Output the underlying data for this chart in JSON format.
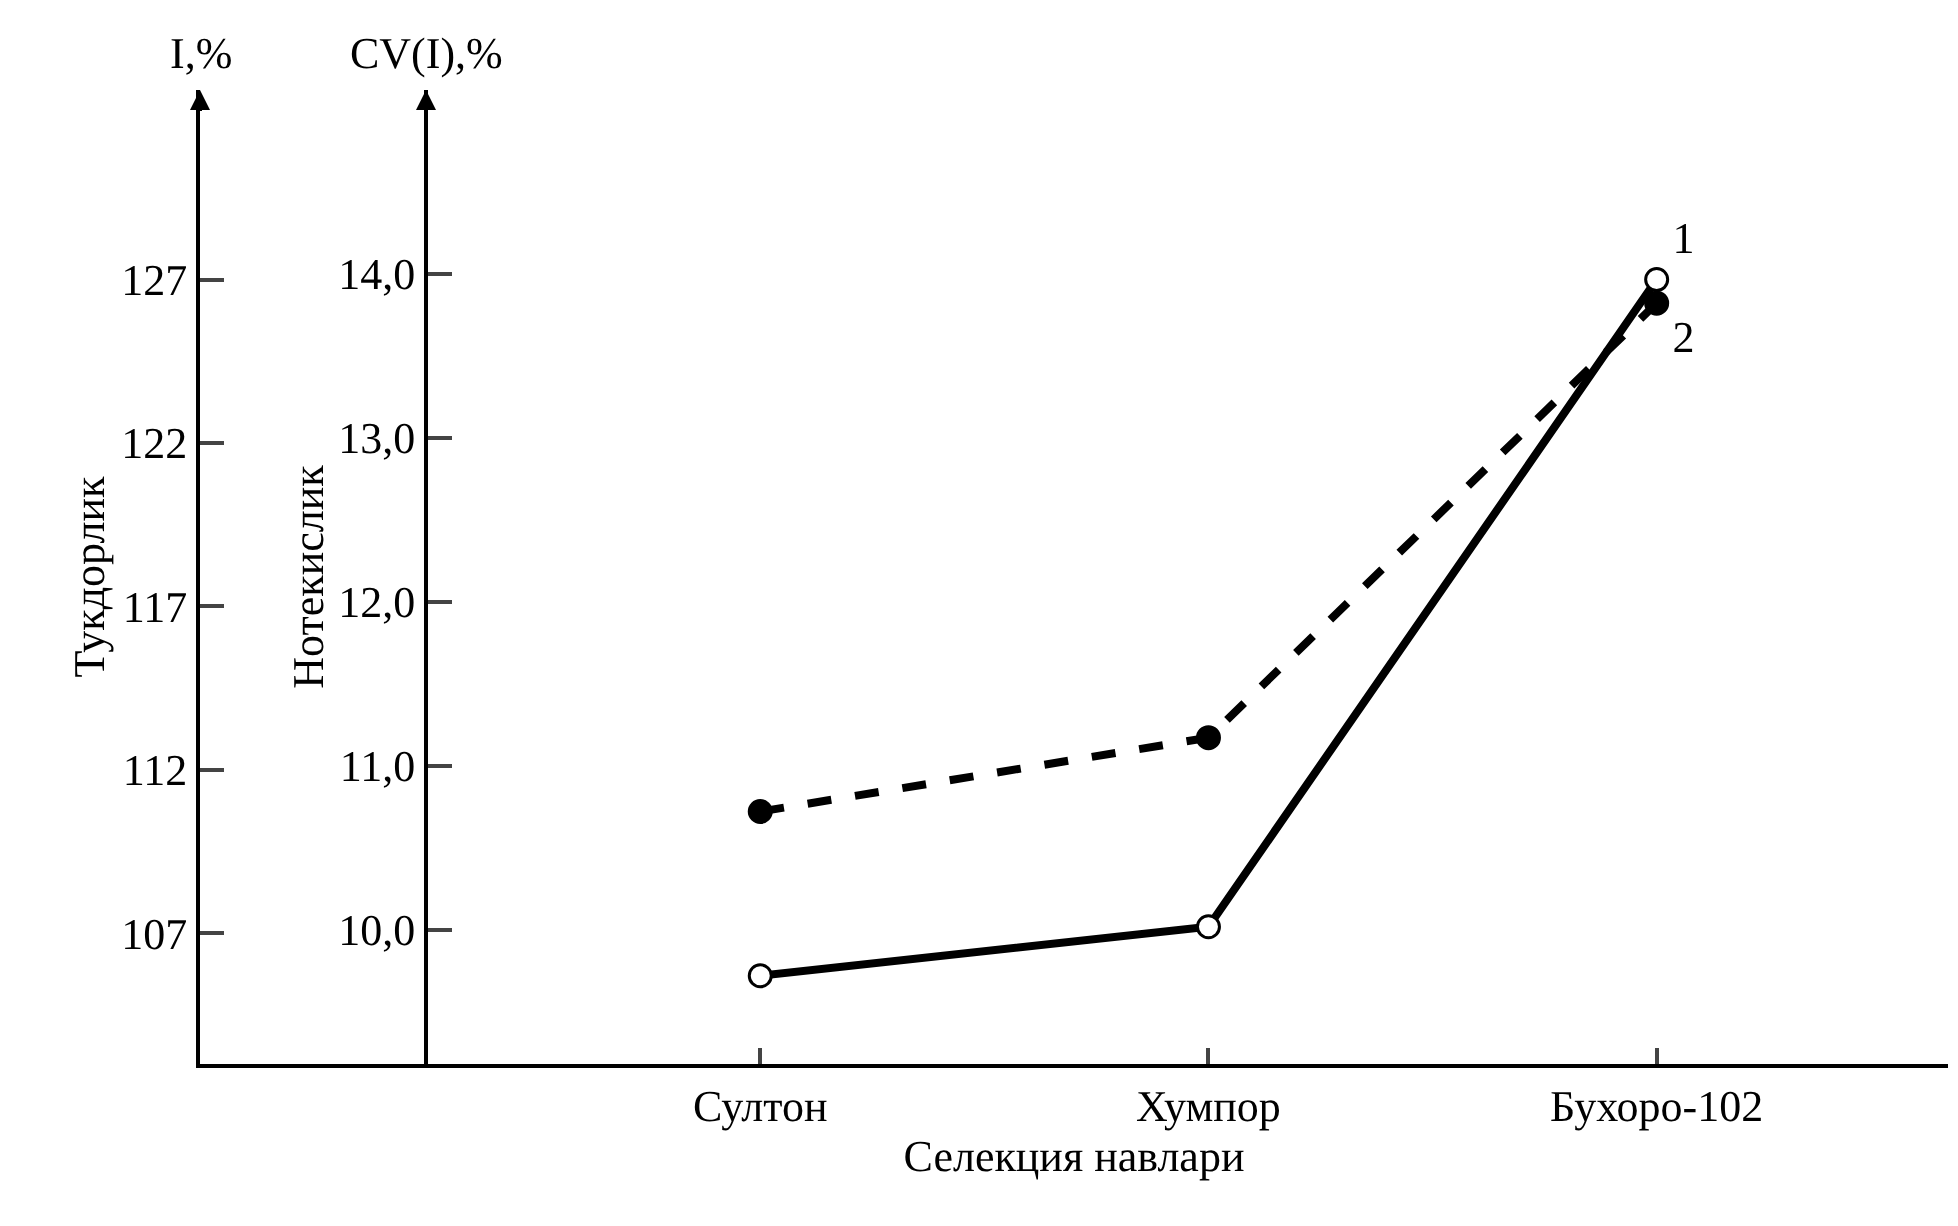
{
  "chart_data": {
    "type": "line",
    "xlabel": "Селекция навлари",
    "ylabel": "Тукдорлик",
    "y2label": "Нотекислик",
    "categories": [
      "Султон",
      "Хумпор",
      "Бухоро-102"
    ],
    "series": [
      {
        "name": "1",
        "color": "#000000",
        "values": [
          105.7,
          107.2,
          127.0
        ],
        "line_style": "solid",
        "marker": "circle"
      },
      {
        "name": "2",
        "color": "#000000",
        "values": [
          10.72,
          11.17,
          13.82
        ],
        "axis": "y2",
        "line_style": "dashed",
        "marker": "circle"
      }
    ],
    "ylim": [
      103.0,
      132.8
    ],
    "yticks": [
      107,
      112,
      117,
      122,
      127
    ],
    "y2lim": [
      9.18,
      15.12
    ],
    "y2ticks": [
      {
        "value": 10,
        "label": "10,0"
      },
      {
        "value": 11,
        "label": "11,0"
      },
      {
        "value": 12,
        "label": "12,0"
      },
      {
        "value": 13,
        "label": "13,0"
      },
      {
        "value": 14,
        "label": "14,0"
      }
    ],
    "annotations": [
      "I,%",
      "CV(I),%"
    ]
  }
}
